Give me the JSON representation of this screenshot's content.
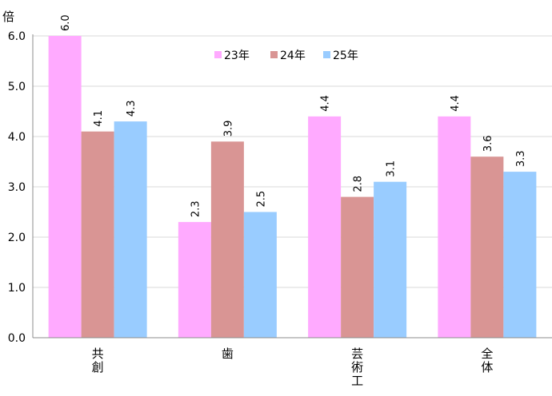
{
  "chart_data": {
    "type": "bar",
    "y_unit": "倍",
    "categories": [
      [
        "共",
        "創"
      ],
      [
        "歯"
      ],
      [
        "芸",
        "術",
        "工"
      ],
      [
        "全",
        "体"
      ]
    ],
    "series": [
      {
        "name": "23年",
        "color": "#ffaaff",
        "values": [
          6.0,
          2.3,
          4.4,
          4.4
        ]
      },
      {
        "name": "24年",
        "color": "#d99594",
        "values": [
          4.1,
          3.9,
          2.8,
          3.6
        ]
      },
      {
        "name": "25年",
        "color": "#99ccff",
        "values": [
          4.3,
          2.5,
          3.1,
          3.3
        ]
      }
    ],
    "data_labels": [
      [
        "6.0",
        "2.3",
        "4.4",
        "4.4"
      ],
      [
        "4.1",
        "3.9",
        "2.8",
        "3.6"
      ],
      [
        "4.3",
        "2.5",
        "3.1",
        "3.3"
      ]
    ],
    "y_ticks": [
      "0.0",
      "1.0",
      "2.0",
      "3.0",
      "4.0",
      "5.0",
      "6.0"
    ],
    "ylim": [
      0,
      6.0
    ],
    "grid": true,
    "legend_position": "top-center"
  }
}
